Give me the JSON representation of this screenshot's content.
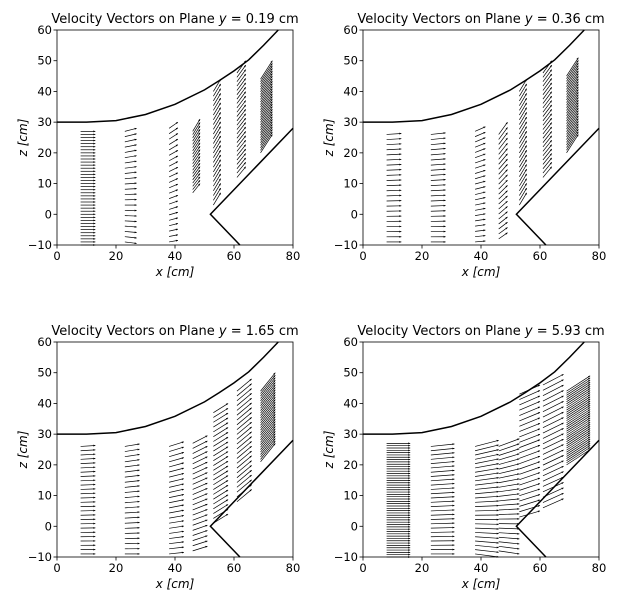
{
  "chart_data": [
    {
      "type": "quiver",
      "title": "Velocity Vectors on Plane y = 0.19 cm",
      "title_prefix": "Velocity Vectors on Plane ",
      "title_var": "y",
      "title_value": " = 0.19 cm",
      "xlabel": "x [cm]",
      "ylabel": "z [cm]",
      "xlim": [
        0,
        80
      ],
      "ylim": [
        -10,
        60
      ],
      "xticks": [
        0,
        20,
        40,
        60,
        80
      ],
      "yticks": [
        -10,
        0,
        10,
        20,
        30,
        40,
        50,
        60
      ],
      "columns": [
        {
          "x": 8,
          "z0": -10,
          "z1": 27,
          "n": 38,
          "u": 5,
          "w0": 0,
          "w1": 0
        },
        {
          "x": 23,
          "z0": -9,
          "z1": 27,
          "n": 22,
          "u": 4,
          "w0": -0.5,
          "w1": 1
        },
        {
          "x": 38,
          "z0": -9,
          "z1": 28,
          "n": 22,
          "u": 3,
          "w0": 0.5,
          "w1": 2
        },
        {
          "x": 46,
          "z0": 7,
          "z1": 27,
          "n": 20,
          "u": 2.5,
          "w0": 3,
          "w1": 4
        },
        {
          "x": 53,
          "z0": 3,
          "z1": 40,
          "n": 25,
          "u": 2.5,
          "w0": 4,
          "w1": 4
        },
        {
          "x": 61,
          "z0": 12,
          "z1": 46,
          "n": 25,
          "u": 3,
          "w0": 3.5,
          "w1": 4
        },
        {
          "x": 69,
          "z0": 20,
          "z1": 44,
          "n": 30,
          "u": 4,
          "w0": 6,
          "w1": 6
        }
      ]
    },
    {
      "type": "quiver",
      "title": "Velocity Vectors on Plane y = 0.36 cm",
      "title_prefix": "Velocity Vectors on Plane ",
      "title_var": "y",
      "title_value": " = 0.36 cm",
      "xlabel": "x [cm]",
      "ylabel": "z [cm]",
      "xlim": [
        0,
        80
      ],
      "ylim": [
        -10,
        60
      ],
      "xticks": [
        0,
        20,
        40,
        60,
        80
      ],
      "yticks": [
        -10,
        0,
        10,
        20,
        30,
        40,
        50,
        60
      ],
      "columns": [
        {
          "x": 8,
          "z0": -9,
          "z1": 26,
          "n": 22,
          "u": 5,
          "w0": 0,
          "w1": 0.3
        },
        {
          "x": 23,
          "z0": -9,
          "z1": 26,
          "n": 22,
          "u": 5,
          "w0": 0,
          "w1": 0.5
        },
        {
          "x": 38,
          "z0": -9,
          "z1": 27,
          "n": 22,
          "u": 3.5,
          "w0": 0.3,
          "w1": 1.5
        },
        {
          "x": 46,
          "z0": -8,
          "z1": 26,
          "n": 22,
          "u": 3,
          "w0": 2,
          "w1": 4
        },
        {
          "x": 53,
          "z0": 3,
          "z1": 40,
          "n": 25,
          "u": 2.5,
          "w0": 4,
          "w1": 4
        },
        {
          "x": 61,
          "z0": 12,
          "z1": 46,
          "n": 25,
          "u": 3,
          "w0": 3.5,
          "w1": 4
        },
        {
          "x": 69,
          "z0": 20,
          "z1": 45,
          "n": 30,
          "u": 4,
          "w0": 6,
          "w1": 6
        }
      ]
    },
    {
      "type": "quiver",
      "title": "Velocity Vectors on Plane y = 1.65 cm",
      "title_prefix": "Velocity Vectors on Plane ",
      "title_var": "y",
      "title_value": " = 1.65 cm",
      "xlabel": "x [cm]",
      "ylabel": "z [cm]",
      "xlim": [
        0,
        80
      ],
      "ylim": [
        -10,
        60
      ],
      "xticks": [
        0,
        20,
        40,
        60,
        80
      ],
      "yticks": [
        -10,
        0,
        10,
        20,
        30,
        40,
        50,
        60
      ],
      "columns": [
        {
          "x": 8,
          "z0": -9,
          "z1": 26,
          "n": 26,
          "u": 5,
          "w0": 0,
          "w1": 0.3
        },
        {
          "x": 23,
          "z0": -9,
          "z1": 26,
          "n": 22,
          "u": 5,
          "w0": 0,
          "w1": 0.8
        },
        {
          "x": 38,
          "z0": -9,
          "z1": 26,
          "n": 22,
          "u": 5,
          "w0": 0.5,
          "w1": 1.5
        },
        {
          "x": 46,
          "z0": -8,
          "z1": 27,
          "n": 22,
          "u": 5,
          "w0": 1.5,
          "w1": 2.5
        },
        {
          "x": 53,
          "z0": 1,
          "z1": 37,
          "n": 24,
          "u": 5,
          "w0": 3,
          "w1": 3
        },
        {
          "x": 61,
          "z0": 8,
          "z1": 44,
          "n": 24,
          "u": 5,
          "w0": 4,
          "w1": 4
        },
        {
          "x": 69,
          "z0": 21,
          "z1": 44,
          "n": 30,
          "u": 5,
          "w0": 6,
          "w1": 6
        }
      ]
    },
    {
      "type": "quiver",
      "title": "Velocity Vectors on Plane y = 5.93 cm",
      "title_prefix": "Velocity Vectors on Plane ",
      "title_var": "y",
      "title_value": " = 5.93 cm",
      "xlabel": "x [cm]",
      "ylabel": "z [cm]",
      "xlim": [
        0,
        80
      ],
      "ylim": [
        -10,
        60
      ],
      "xticks": [
        0,
        20,
        40,
        60,
        80
      ],
      "yticks": [
        -10,
        0,
        10,
        20,
        30,
        40,
        50,
        60
      ],
      "columns": [
        {
          "x": 8,
          "z0": -10,
          "z1": 27,
          "n": 50,
          "u": 8,
          "w0": 0,
          "w1": 0
        },
        {
          "x": 23,
          "z0": -9,
          "z1": 26,
          "n": 26,
          "u": 8,
          "w0": 0,
          "w1": 0.8
        },
        {
          "x": 38,
          "z0": -9,
          "z1": 26,
          "n": 26,
          "u": 8,
          "w0": -1,
          "w1": 2
        },
        {
          "x": 46,
          "z0": -8,
          "z1": 26,
          "n": 24,
          "u": 7,
          "w0": -1,
          "w1": 2.5
        },
        {
          "x": 53,
          "z0": 3,
          "z1": 43,
          "n": 24,
          "u": 7,
          "w0": 2,
          "w1": 3
        },
        {
          "x": 61,
          "z0": 6,
          "z1": 46,
          "n": 24,
          "u": 7,
          "w0": 3,
          "w1": 3.5
        },
        {
          "x": 69,
          "z0": 20,
          "z1": 44,
          "n": 36,
          "u": 8,
          "w0": 5,
          "w1": 5
        }
      ]
    }
  ],
  "walls": {
    "upper": [
      [
        0,
        30
      ],
      [
        10,
        30
      ],
      [
        20,
        30.5
      ],
      [
        30,
        32.5
      ],
      [
        40,
        35.8
      ],
      [
        50,
        40.5
      ],
      [
        55,
        43.5
      ],
      [
        60,
        46.7
      ],
      [
        65,
        50.3
      ],
      [
        70,
        55
      ],
      [
        75,
        60
      ]
    ],
    "lower_a": [
      [
        80,
        28
      ],
      [
        52,
        0
      ],
      [
        62,
        -10
      ]
    ]
  }
}
